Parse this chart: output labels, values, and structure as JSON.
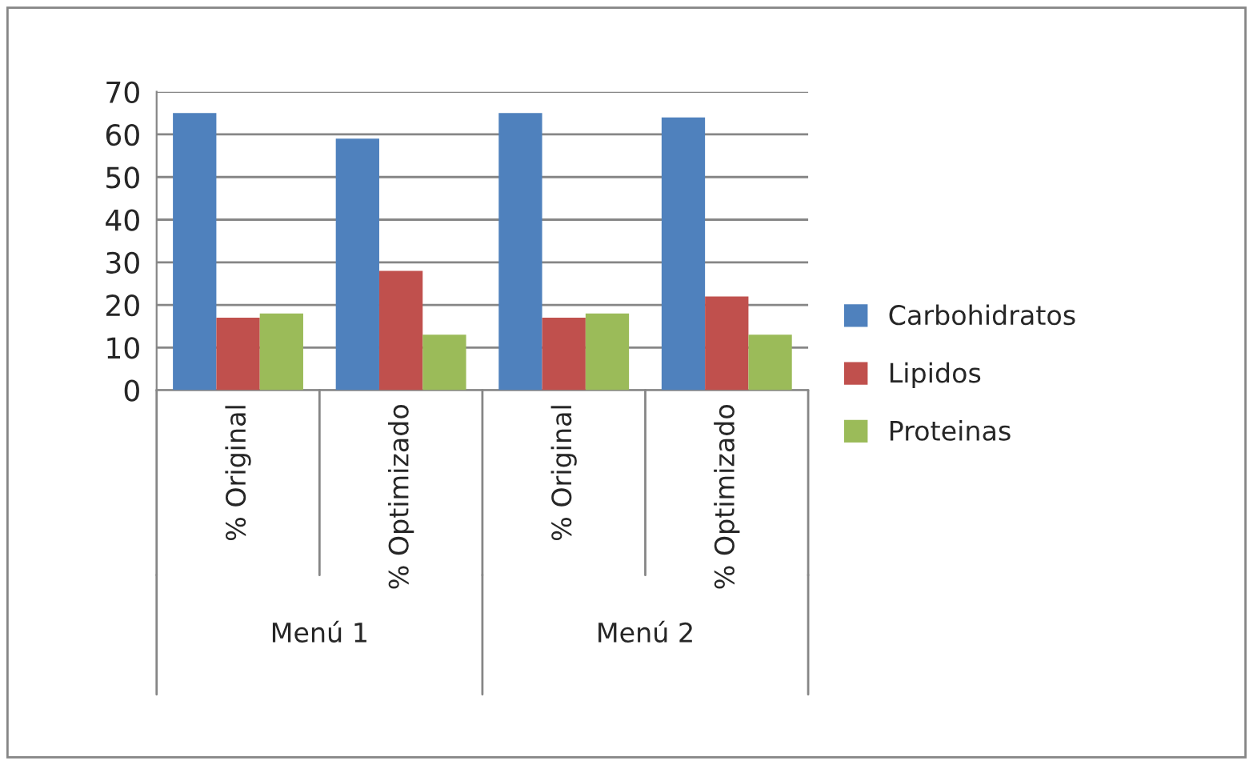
{
  "chart_data": {
    "type": "bar",
    "categories": [
      "% Original",
      "% Optimizado",
      "% Original",
      "% Optimizado"
    ],
    "series": [
      {
        "name": "Carbohidratos",
        "color": "#4f81bd",
        "values": [
          65,
          59,
          65,
          64
        ]
      },
      {
        "name": "Lipidos",
        "color": "#c0504d",
        "values": [
          17,
          28,
          17,
          22
        ]
      },
      {
        "name": "Proteinas",
        "color": "#9bbb59",
        "values": [
          18,
          13,
          18,
          13
        ]
      }
    ],
    "annotations": [
      "Menú 1",
      "Menú 2"
    ],
    "ylim": [
      0,
      70
    ],
    "yticks": [
      0,
      10,
      20,
      30,
      40,
      50,
      60,
      70
    ],
    "grid": "y",
    "legend": "right"
  }
}
